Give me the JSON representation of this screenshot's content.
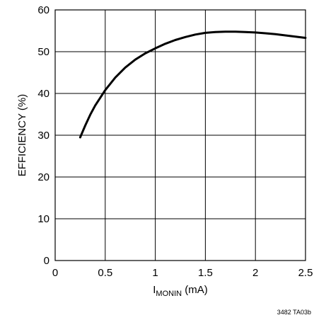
{
  "chart_data": {
    "type": "line",
    "title": "",
    "xlabel_main": "I",
    "xlabel_sub": "MONIN",
    "xlabel_unit": " (mA)",
    "ylabel": "EFFICIENCY (%)",
    "xlim": [
      0,
      2.5
    ],
    "ylim": [
      0,
      60
    ],
    "x_ticks": [
      0,
      0.5,
      1,
      1.5,
      2,
      2.5
    ],
    "x_tick_labels": [
      "0",
      "0.5",
      "1",
      "1.5",
      "2",
      "2.5"
    ],
    "y_ticks": [
      0,
      10,
      20,
      30,
      40,
      50,
      60
    ],
    "y_tick_labels": [
      "0",
      "10",
      "20",
      "30",
      "40",
      "50",
      "60"
    ],
    "grid": true,
    "series": [
      {
        "x": [
          0.25,
          0.3,
          0.35,
          0.4,
          0.5,
          0.6,
          0.7,
          0.8,
          0.9,
          1.0,
          1.1,
          1.2,
          1.3,
          1.4,
          1.5,
          1.6,
          1.7,
          1.8,
          1.9,
          2.0,
          2.1,
          2.2,
          2.3,
          2.4,
          2.5
        ],
        "y": [
          29.5,
          32.3,
          34.9,
          37.1,
          40.8,
          43.8,
          46.2,
          48.1,
          49.6,
          50.8,
          51.9,
          52.8,
          53.5,
          54.1,
          54.5,
          54.7,
          54.8,
          54.8,
          54.7,
          54.6,
          54.4,
          54.2,
          53.9,
          53.6,
          53.3
        ]
      }
    ],
    "colors": {
      "line": "#000000",
      "grid": "#000000",
      "background": "#ffffff"
    }
  },
  "figure_id": "3482 TA03b"
}
